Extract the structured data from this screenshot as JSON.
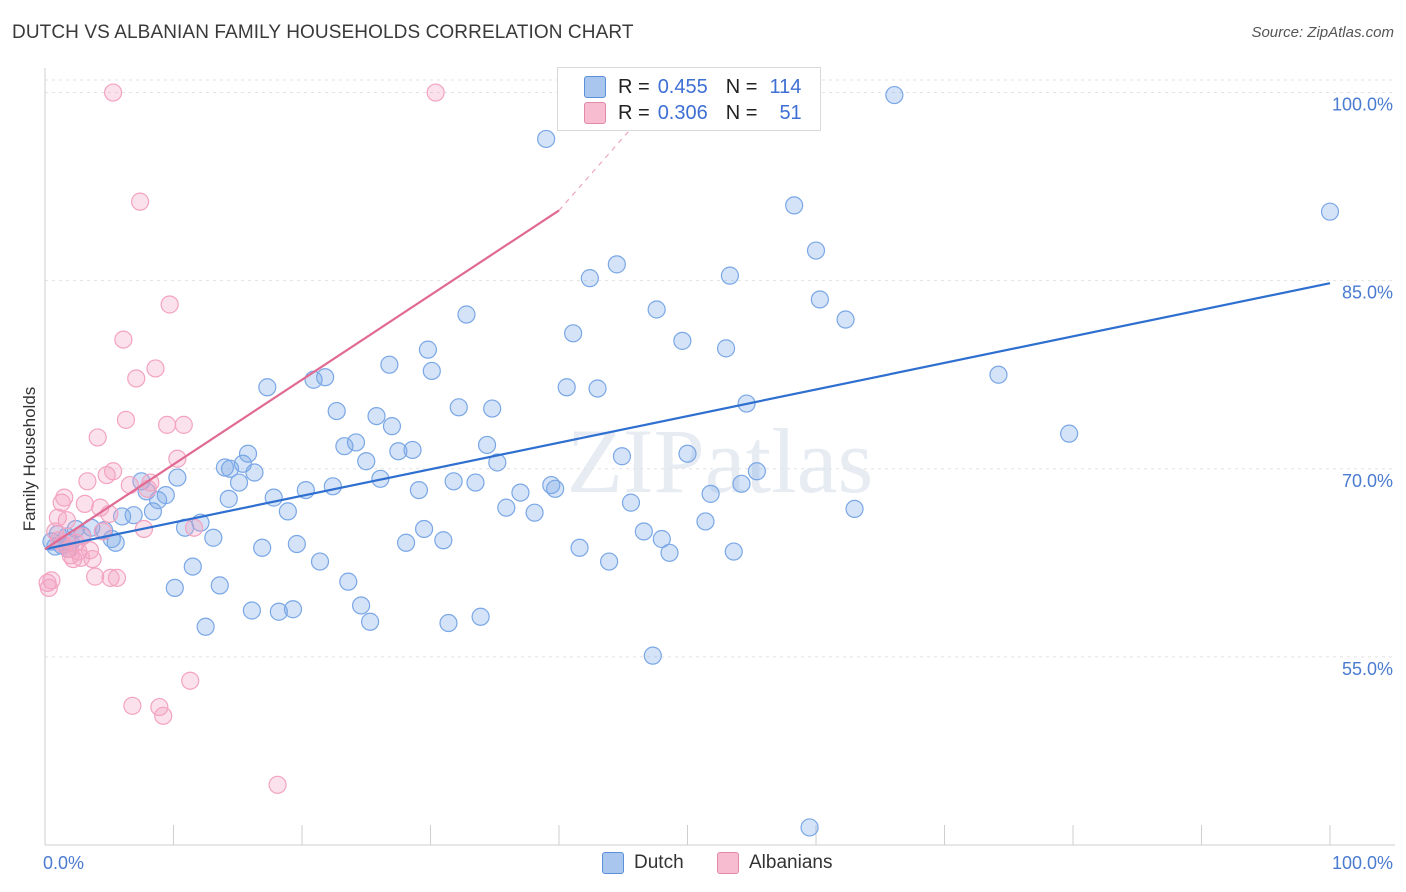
{
  "title": "DUTCH VS ALBANIAN FAMILY HOUSEHOLDS CORRELATION CHART",
  "source": "Source: ZipAtlas.com",
  "watermark": "ZIPatlas",
  "legend": {
    "rows": [
      {
        "r_label": "R =",
        "r_value": "0.455",
        "n_label": "N =",
        "n_value": "114",
        "color": "#a9c6ef",
        "border": "#5b8fd8"
      },
      {
        "r_label": "R =",
        "r_value": "0.306",
        "n_label": "N =",
        "n_value": "51",
        "color": "#f7bcd0",
        "border": "#e08aa8"
      }
    ]
  },
  "bottom_legend": [
    {
      "label": "Dutch",
      "color": "#a9c6ef",
      "border": "#5b8fd8"
    },
    {
      "label": "Albanians",
      "color": "#f7bcd0",
      "border": "#e08aa8"
    }
  ],
  "chart_data": {
    "type": "scatter",
    "title": "DUTCH VS ALBANIAN FAMILY HOUSEHOLDS CORRELATION CHART",
    "xlabel": "",
    "ylabel": "Family Households",
    "xlim": [
      0,
      100
    ],
    "ylim": [
      40,
      101
    ],
    "x_tick_labels": [
      "0.0%",
      "100.0%"
    ],
    "y_ticks": [
      55,
      70,
      85,
      100
    ],
    "y_tick_labels": [
      "55.0%",
      "70.0%",
      "85.0%",
      "100.0%"
    ],
    "grid": true,
    "series": [
      {
        "name": "Dutch",
        "color": "#7aa7e6",
        "line_color": "#2e6fd0",
        "trend": {
          "x": [
            0,
            100
          ],
          "y": [
            63.6,
            84.8
          ],
          "dashed_from": null
        },
        "points": [
          [
            0.5,
            64.2
          ],
          [
            1.0,
            64.8
          ],
          [
            1.3,
            63.9
          ],
          [
            1.7,
            64.6
          ],
          [
            2.0,
            64.1
          ],
          [
            2.4,
            65.2
          ],
          [
            2.9,
            64.7
          ],
          [
            3.6,
            65.3
          ],
          [
            4.6,
            65.1
          ],
          [
            5.2,
            64.4
          ],
          [
            5.5,
            64.1
          ],
          [
            6.0,
            66.2
          ],
          [
            6.9,
            66.3
          ],
          [
            7.5,
            69.0
          ],
          [
            7.9,
            68.2
          ],
          [
            8.4,
            66.6
          ],
          [
            8.8,
            67.5
          ],
          [
            9.4,
            67.9
          ],
          [
            10.1,
            60.5
          ],
          [
            10.3,
            69.3
          ],
          [
            10.9,
            65.3
          ],
          [
            11.5,
            62.2
          ],
          [
            12.1,
            65.7
          ],
          [
            12.5,
            57.4
          ],
          [
            13.1,
            64.5
          ],
          [
            13.6,
            60.7
          ],
          [
            14.0,
            70.1
          ],
          [
            14.3,
            67.6
          ],
          [
            14.4,
            70.0
          ],
          [
            15.1,
            68.9
          ],
          [
            15.4,
            70.4
          ],
          [
            15.8,
            71.2
          ],
          [
            16.3,
            69.7
          ],
          [
            16.9,
            63.7
          ],
          [
            17.3,
            76.5
          ],
          [
            17.8,
            67.7
          ],
          [
            18.2,
            58.6
          ],
          [
            18.9,
            66.6
          ],
          [
            19.3,
            58.8
          ],
          [
            19.6,
            64.0
          ],
          [
            20.3,
            68.3
          ],
          [
            20.9,
            77.1
          ],
          [
            21.4,
            62.6
          ],
          [
            21.8,
            77.3
          ],
          [
            22.4,
            68.6
          ],
          [
            22.7,
            74.6
          ],
          [
            23.3,
            71.8
          ],
          [
            23.6,
            61.0
          ],
          [
            24.2,
            72.1
          ],
          [
            24.6,
            59.1
          ],
          [
            25.0,
            70.6
          ],
          [
            25.3,
            57.8
          ],
          [
            25.8,
            74.2
          ],
          [
            26.1,
            69.2
          ],
          [
            26.8,
            78.3
          ],
          [
            27.0,
            73.4
          ],
          [
            27.5,
            71.4
          ],
          [
            28.1,
            64.1
          ],
          [
            28.6,
            71.5
          ],
          [
            29.1,
            68.3
          ],
          [
            29.5,
            65.2
          ],
          [
            29.8,
            79.5
          ],
          [
            30.1,
            77.8
          ],
          [
            31.0,
            64.3
          ],
          [
            31.4,
            57.7
          ],
          [
            31.8,
            69.0
          ],
          [
            32.2,
            74.9
          ],
          [
            32.8,
            82.3
          ],
          [
            33.5,
            68.9
          ],
          [
            33.9,
            58.2
          ],
          [
            34.4,
            71.9
          ],
          [
            34.8,
            74.8
          ],
          [
            35.2,
            70.5
          ],
          [
            35.9,
            66.9
          ],
          [
            37.0,
            68.1
          ],
          [
            38.1,
            66.5
          ],
          [
            39.0,
            96.3
          ],
          [
            39.4,
            68.7
          ],
          [
            39.7,
            68.4
          ],
          [
            40.6,
            76.5
          ],
          [
            41.1,
            80.8
          ],
          [
            41.6,
            63.7
          ],
          [
            42.4,
            85.2
          ],
          [
            43.0,
            76.4
          ],
          [
            43.9,
            62.6
          ],
          [
            44.5,
            86.3
          ],
          [
            44.9,
            71.0
          ],
          [
            45.6,
            67.3
          ],
          [
            46.6,
            65.0
          ],
          [
            47.6,
            82.7
          ],
          [
            48.0,
            64.4
          ],
          [
            48.6,
            63.3
          ],
          [
            49.6,
            80.2
          ],
          [
            50.0,
            71.2
          ],
          [
            51.4,
            65.8
          ],
          [
            51.8,
            68.0
          ],
          [
            53.0,
            79.6
          ],
          [
            53.3,
            85.4
          ],
          [
            53.6,
            63.4
          ],
          [
            54.2,
            68.8
          ],
          [
            54.6,
            75.2
          ],
          [
            55.4,
            69.8
          ],
          [
            58.3,
            91.0
          ],
          [
            59.5,
            41.4
          ],
          [
            60.0,
            87.4
          ],
          [
            60.3,
            83.5
          ],
          [
            62.3,
            81.9
          ],
          [
            63.0,
            66.8
          ],
          [
            66.1,
            99.8
          ],
          [
            74.2,
            77.5
          ],
          [
            79.7,
            72.8
          ],
          [
            100.0,
            90.5
          ],
          [
            0.8,
            63.8
          ],
          [
            1.8,
            63.6
          ],
          [
            47.3,
            55.1
          ],
          [
            16.1,
            58.7
          ]
        ]
      },
      {
        "name": "Albanians",
        "color": "#f3a3c0",
        "line_color": "#e06a92",
        "trend": {
          "x": [
            0,
            40
          ],
          "y": [
            63.6,
            90.6
          ],
          "dashed_from": 40,
          "dashed_to": [
            45.5,
            97.0
          ]
        },
        "points": [
          [
            0.2,
            60.9
          ],
          [
            0.5,
            61.1
          ],
          [
            0.8,
            65.0
          ],
          [
            1.0,
            66.1
          ],
          [
            1.1,
            64.3
          ],
          [
            1.3,
            67.3
          ],
          [
            1.5,
            67.7
          ],
          [
            1.7,
            65.9
          ],
          [
            1.9,
            63.6
          ],
          [
            2.0,
            63.1
          ],
          [
            2.2,
            62.8
          ],
          [
            2.4,
            64.1
          ],
          [
            2.6,
            63.4
          ],
          [
            2.9,
            64.6
          ],
          [
            3.1,
            67.2
          ],
          [
            3.3,
            69.0
          ],
          [
            3.5,
            63.5
          ],
          [
            3.7,
            62.8
          ],
          [
            3.9,
            61.4
          ],
          [
            4.1,
            72.5
          ],
          [
            4.3,
            66.9
          ],
          [
            4.5,
            65.0
          ],
          [
            4.8,
            69.5
          ],
          [
            5.0,
            66.4
          ],
          [
            5.1,
            61.3
          ],
          [
            5.3,
            69.8
          ],
          [
            5.6,
            61.3
          ],
          [
            6.1,
            80.3
          ],
          [
            6.3,
            73.9
          ],
          [
            6.8,
            51.1
          ],
          [
            7.1,
            77.2
          ],
          [
            7.4,
            91.3
          ],
          [
            7.7,
            65.2
          ],
          [
            8.0,
            68.4
          ],
          [
            8.2,
            68.9
          ],
          [
            8.6,
            78.0
          ],
          [
            8.9,
            51.0
          ],
          [
            9.2,
            50.3
          ],
          [
            9.5,
            73.5
          ],
          [
            9.7,
            83.1
          ],
          [
            10.3,
            70.8
          ],
          [
            10.8,
            73.5
          ],
          [
            11.3,
            53.1
          ],
          [
            11.6,
            65.3
          ],
          [
            18.1,
            44.8
          ],
          [
            5.3,
            100.0
          ],
          [
            30.4,
            100.0
          ],
          [
            1.4,
            64.0
          ],
          [
            0.3,
            60.5
          ],
          [
            2.8,
            62.9
          ],
          [
            6.6,
            68.7
          ]
        ]
      }
    ]
  }
}
